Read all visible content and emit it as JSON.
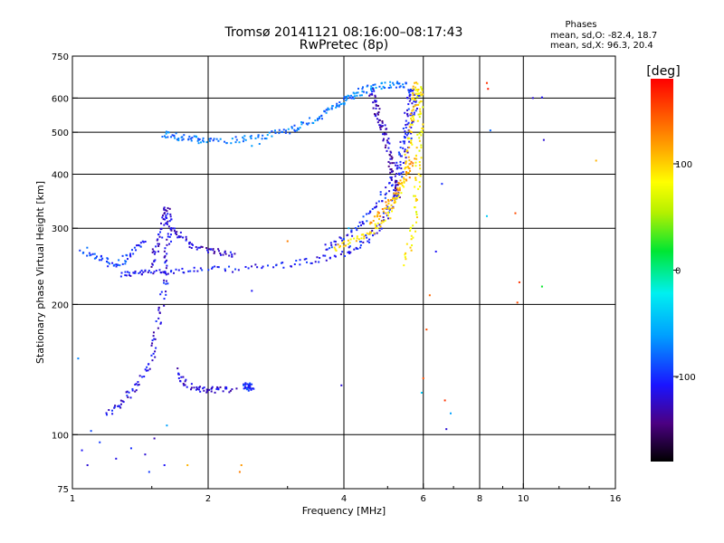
{
  "chart_data": {
    "type": "scatter",
    "title": "Tromsø 20141121 08:16:00–08:17:43",
    "subtitle": "RwPretec (8p)",
    "info": {
      "heading": "Phases",
      "line1": "mean, sd,O: -82.4, 18.7",
      "line2": "mean, sd,X:  96.3, 20.4"
    },
    "xlabel": "Frequency [MHz]",
    "ylabel": "Stationary phase Virtual Height [km]",
    "x_scale": "log",
    "y_scale": "log",
    "xlim": [
      1,
      16
    ],
    "ylim": [
      75,
      750
    ],
    "x_ticks": [
      {
        "v": 1,
        "label": "1"
      },
      {
        "v": 2,
        "label": "2"
      },
      {
        "v": 4,
        "label": "4"
      },
      {
        "v": 6,
        "label": "6"
      },
      {
        "v": 8,
        "label": "8"
      },
      {
        "v": 10,
        "label": "10"
      },
      {
        "v": 16,
        "label": "16"
      }
    ],
    "y_ticks": [
      {
        "v": 75,
        "label": "75"
      },
      {
        "v": 100,
        "label": "100"
      },
      {
        "v": 200,
        "label": "200"
      },
      {
        "v": 300,
        "label": "300"
      },
      {
        "v": 400,
        "label": "400"
      },
      {
        "v": 500,
        "label": "500"
      },
      {
        "v": 600,
        "label": "600"
      },
      {
        "v": 750,
        "label": "750"
      }
    ],
    "grid": true,
    "colorbar": {
      "label": "[deg]",
      "range": [
        -180,
        180
      ],
      "ticks": [
        {
          "v": 100,
          "label": "100"
        },
        {
          "v": 0,
          "label": "0"
        },
        {
          "v": -100,
          "label": "-100"
        }
      ]
    },
    "traces": [
      {
        "phase": -110,
        "points": [
          [
            1.28,
            235
          ],
          [
            1.4,
            236
          ],
          [
            1.55,
            238
          ],
          [
            1.8,
            240
          ],
          [
            2.2,
            241
          ],
          [
            2.8,
            245
          ],
          [
            3.4,
            252
          ],
          [
            4.0,
            262
          ],
          [
            4.4,
            276
          ],
          [
            4.8,
            300
          ],
          [
            5.1,
            340
          ],
          [
            5.35,
            400
          ],
          [
            5.55,
            480
          ],
          [
            5.7,
            560
          ],
          [
            5.8,
            620
          ]
        ]
      },
      {
        "phase": -95,
        "points": [
          [
            1.05,
            268
          ],
          [
            1.15,
            255
          ],
          [
            1.25,
            245
          ],
          [
            1.35,
            260
          ],
          [
            1.45,
            285
          ]
        ]
      },
      {
        "phase": -120,
        "points": [
          [
            1.5,
            245
          ],
          [
            1.55,
            275
          ],
          [
            1.6,
            310
          ],
          [
            1.62,
            335
          ],
          [
            1.65,
            300
          ],
          [
            1.75,
            285
          ],
          [
            1.9,
            270
          ],
          [
            2.1,
            265
          ],
          [
            2.3,
            260
          ]
        ]
      },
      {
        "phase": -115,
        "points": [
          [
            1.2,
            112
          ],
          [
            1.3,
            120
          ],
          [
            1.4,
            130
          ],
          [
            1.5,
            150
          ],
          [
            1.55,
            180
          ],
          [
            1.6,
            220
          ],
          [
            1.62,
            260
          ],
          [
            1.64,
            300
          ]
        ]
      },
      {
        "phase": -120,
        "points": [
          [
            1.7,
            140
          ],
          [
            1.8,
            130
          ],
          [
            1.95,
            127
          ],
          [
            2.1,
            127
          ],
          [
            2.3,
            127
          ]
        ]
      },
      {
        "phase": -100,
        "points": [
          [
            2.4,
            130
          ],
          [
            2.45,
            128
          ],
          [
            2.5,
            130
          ]
        ]
      },
      {
        "phase": -75,
        "points": [
          [
            1.6,
            495
          ],
          [
            1.7,
            488
          ],
          [
            1.85,
            482
          ],
          [
            2.0,
            478
          ],
          [
            2.3,
            480
          ],
          [
            2.6,
            488
          ],
          [
            2.9,
            500
          ],
          [
            3.2,
            515
          ],
          [
            3.5,
            540
          ],
          [
            3.8,
            570
          ],
          [
            4.0,
            590
          ],
          [
            4.2,
            610
          ],
          [
            4.5,
            628
          ],
          [
            4.8,
            640
          ],
          [
            5.2,
            645
          ],
          [
            5.5,
            640
          ]
        ]
      },
      {
        "phase": -130,
        "points": [
          [
            4.6,
            620
          ],
          [
            4.7,
            580
          ],
          [
            4.8,
            540
          ],
          [
            4.9,
            500
          ],
          [
            5.0,
            460
          ],
          [
            5.1,
            420
          ],
          [
            5.2,
            380
          ],
          [
            5.25,
            350
          ]
        ]
      },
      {
        "phase": -105,
        "points": [
          [
            3.6,
            270
          ],
          [
            4.0,
            285
          ],
          [
            4.4,
            310
          ],
          [
            4.8,
            345
          ],
          [
            5.1,
            390
          ],
          [
            5.35,
            450
          ],
          [
            5.5,
            520
          ],
          [
            5.6,
            600
          ],
          [
            5.65,
            640
          ]
        ]
      },
      {
        "phase": 95,
        "points": [
          [
            3.8,
            270
          ],
          [
            4.2,
            280
          ],
          [
            4.6,
            295
          ],
          [
            5.0,
            320
          ],
          [
            5.3,
            360
          ],
          [
            5.5,
            410
          ],
          [
            5.6,
            470
          ],
          [
            5.7,
            540
          ],
          [
            5.75,
            610
          ],
          [
            5.8,
            650
          ]
        ]
      },
      {
        "phase": 85,
        "points": [
          [
            5.5,
            250
          ],
          [
            5.7,
            300
          ],
          [
            5.8,
            360
          ],
          [
            5.85,
            430
          ],
          [
            5.9,
            500
          ],
          [
            5.9,
            580
          ],
          [
            5.9,
            640
          ]
        ]
      },
      {
        "phase": 115,
        "points": [
          [
            4.6,
            310
          ],
          [
            4.9,
            330
          ],
          [
            5.2,
            360
          ],
          [
            5.5,
            395
          ],
          [
            5.7,
            430
          ]
        ]
      }
    ],
    "scatter": [
      {
        "x": 1.05,
        "y": 92,
        "phase": -110
      },
      {
        "x": 1.1,
        "y": 102,
        "phase": -90
      },
      {
        "x": 1.08,
        "y": 85,
        "phase": -120
      },
      {
        "x": 1.15,
        "y": 96,
        "phase": -95
      },
      {
        "x": 1.25,
        "y": 88,
        "phase": -115
      },
      {
        "x": 1.35,
        "y": 93,
        "phase": -100
      },
      {
        "x": 1.45,
        "y": 90,
        "phase": -120
      },
      {
        "x": 1.52,
        "y": 98,
        "phase": -130
      },
      {
        "x": 1.6,
        "y": 85,
        "phase": -110
      },
      {
        "x": 1.48,
        "y": 82,
        "phase": -95
      },
      {
        "x": 1.62,
        "y": 105,
        "phase": -60
      },
      {
        "x": 1.03,
        "y": 150,
        "phase": -70
      },
      {
        "x": 1.8,
        "y": 85,
        "phase": 110
      },
      {
        "x": 2.35,
        "y": 82,
        "phase": 130
      },
      {
        "x": 2.37,
        "y": 85,
        "phase": 120
      },
      {
        "x": 2.5,
        "y": 465,
        "phase": -60
      },
      {
        "x": 2.6,
        "y": 470,
        "phase": -70
      },
      {
        "x": 2.5,
        "y": 215,
        "phase": -110
      },
      {
        "x": 3.0,
        "y": 280,
        "phase": 130
      },
      {
        "x": 3.3,
        "y": 255,
        "phase": -100
      },
      {
        "x": 3.95,
        "y": 130,
        "phase": -120
      },
      {
        "x": 4.1,
        "y": 300,
        "phase": -50
      },
      {
        "x": 6.0,
        "y": 135,
        "phase": 150
      },
      {
        "x": 6.1,
        "y": 175,
        "phase": 150
      },
      {
        "x": 6.2,
        "y": 210,
        "phase": 140
      },
      {
        "x": 6.4,
        "y": 265,
        "phase": -110
      },
      {
        "x": 6.6,
        "y": 380,
        "phase": -100
      },
      {
        "x": 6.7,
        "y": 120,
        "phase": 160
      },
      {
        "x": 6.75,
        "y": 103,
        "phase": -120
      },
      {
        "x": 6.9,
        "y": 112,
        "phase": -60
      },
      {
        "x": 5.95,
        "y": 125,
        "phase": -40
      },
      {
        "x": 8.3,
        "y": 650,
        "phase": 160
      },
      {
        "x": 8.35,
        "y": 630,
        "phase": 170
      },
      {
        "x": 8.3,
        "y": 320,
        "phase": -40
      },
      {
        "x": 8.45,
        "y": 505,
        "phase": -80
      },
      {
        "x": 9.6,
        "y": 325,
        "phase": 150
      },
      {
        "x": 9.8,
        "y": 225,
        "phase": 160
      },
      {
        "x": 9.7,
        "y": 202,
        "phase": 150
      },
      {
        "x": 10.5,
        "y": 600,
        "phase": -120
      },
      {
        "x": 11.0,
        "y": 602,
        "phase": -110
      },
      {
        "x": 11.1,
        "y": 480,
        "phase": -120
      },
      {
        "x": 11.0,
        "y": 220,
        "phase": 20
      },
      {
        "x": 14.5,
        "y": 430,
        "phase": 110
      }
    ]
  }
}
